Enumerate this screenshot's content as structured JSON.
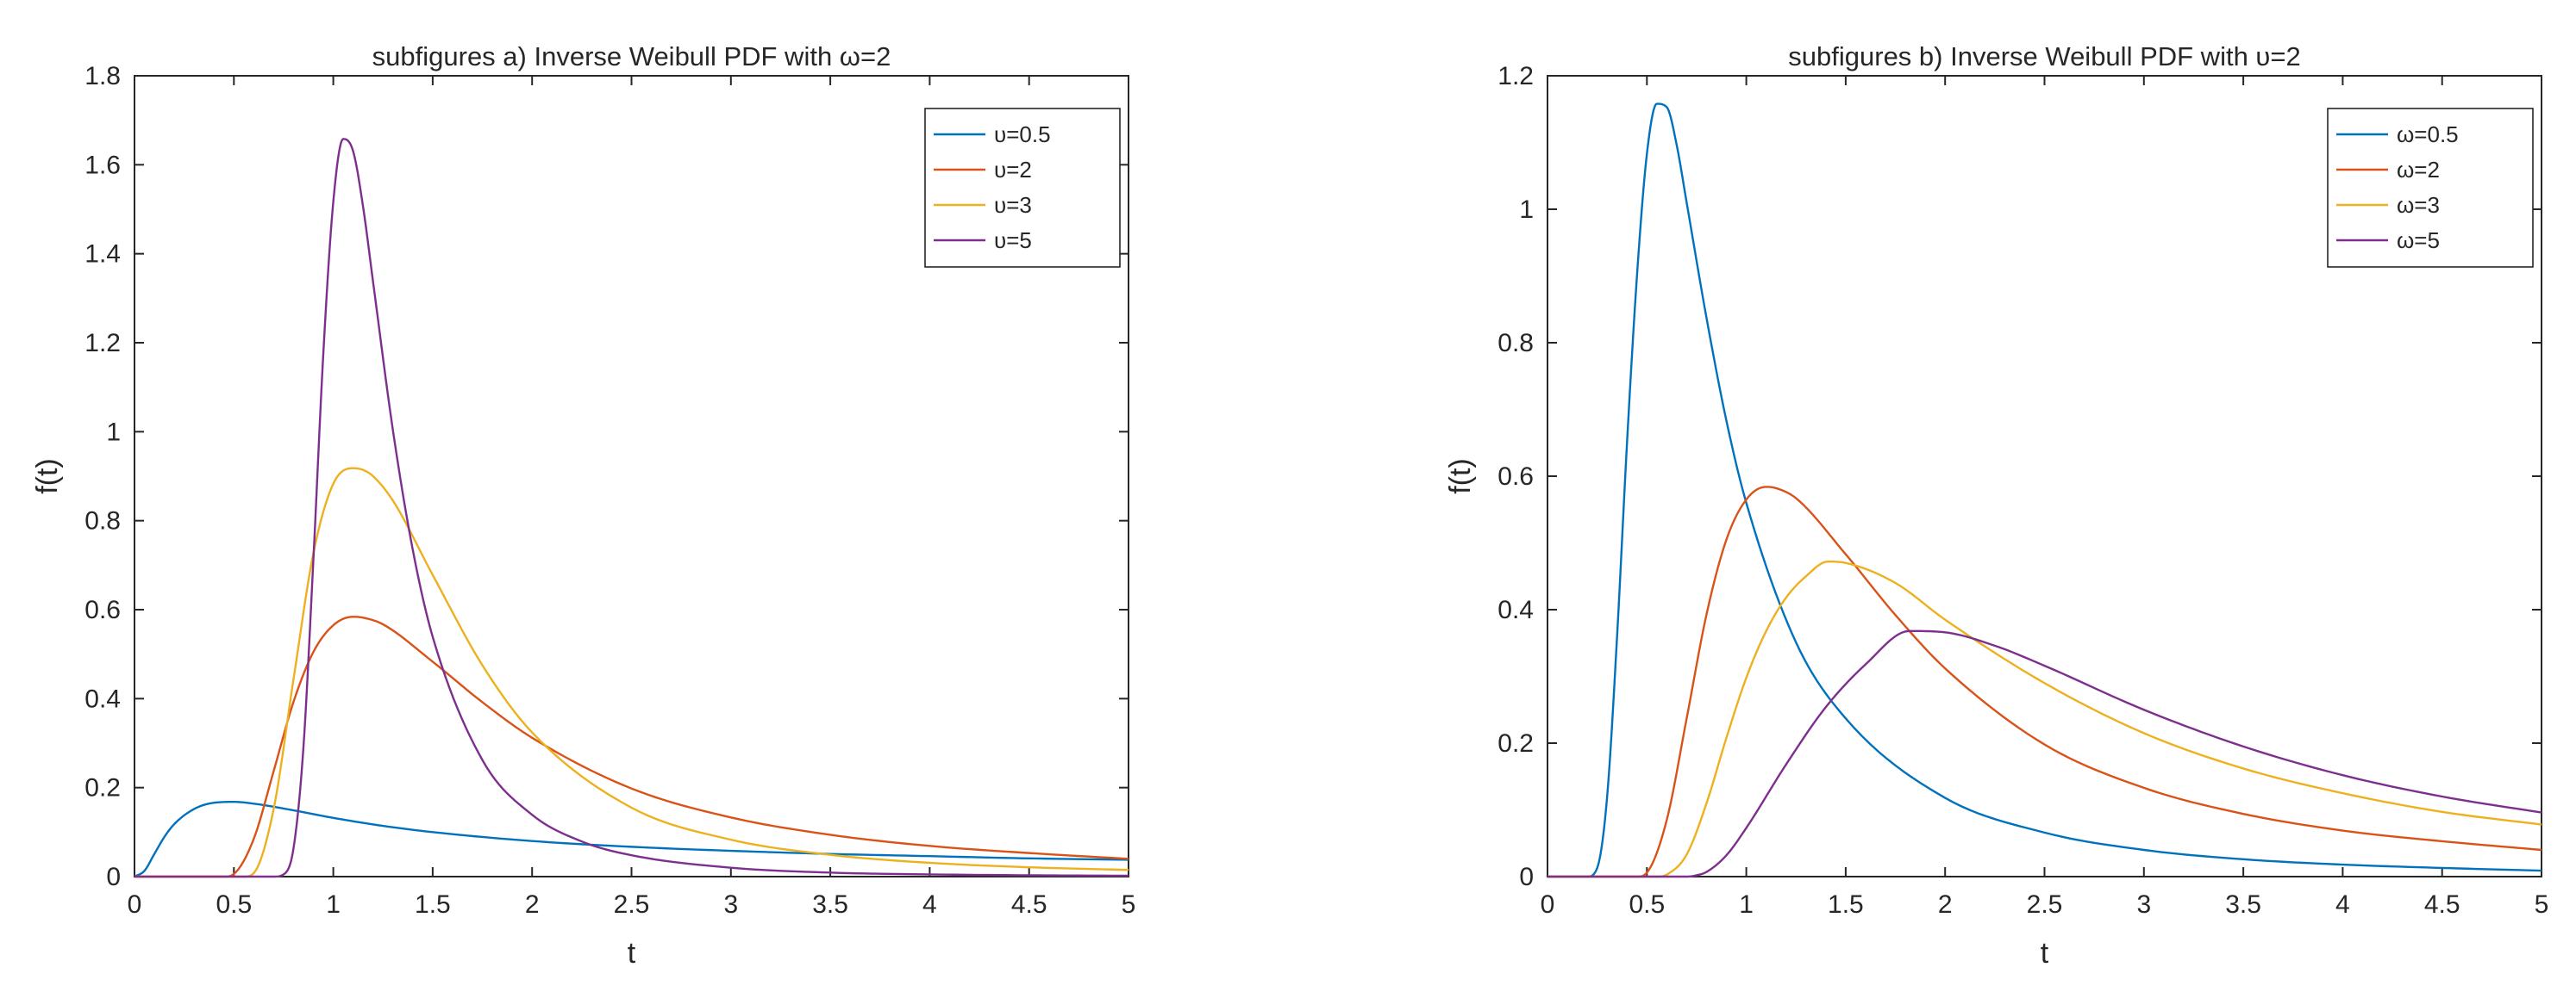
{
  "chart_data": [
    {
      "type": "line",
      "title": "subfigures a)   Inverse Weibull PDF with ω=2",
      "xlabel": "t",
      "ylabel": "f(t)",
      "xlim": [
        0,
        5
      ],
      "ylim": [
        0,
        1.8
      ],
      "xticks": [
        0,
        0.5,
        1,
        1.5,
        2,
        2.5,
        3,
        3.5,
        4,
        4.5,
        5
      ],
      "yticks": [
        0,
        0.2,
        0.4,
        0.6,
        0.8,
        1,
        1.2,
        1.4,
        1.6,
        1.8
      ],
      "xtick_labels": [
        "0",
        "0.5",
        "1",
        "1.5",
        "2",
        "2.5",
        "3",
        "3.5",
        "4",
        "4.5",
        "5"
      ],
      "ytick_labels": [
        "0",
        "0.2",
        "0.4",
        "0.6",
        "0.8",
        "1",
        "1.2",
        "1.4",
        "1.6",
        "1.8"
      ],
      "grid": false,
      "legend_position": "top-right",
      "series": [
        {
          "name": "υ=0.5",
          "color": "#0072BD",
          "x": [
            0,
            0.05,
            0.1,
            0.15,
            0.2,
            0.3,
            0.4,
            0.5,
            0.6,
            0.8,
            1,
            1.25,
            1.5,
            2,
            2.5,
            3,
            3.5,
            4,
            4.5,
            5
          ],
          "y": [
            0,
            0.013,
            0.051,
            0.089,
            0.118,
            0.152,
            0.166,
            0.168,
            0.164,
            0.149,
            0.132,
            0.114,
            0.1,
            0.08,
            0.067,
            0.058,
            0.051,
            0.046,
            0.041,
            0.038
          ]
        },
        {
          "name": "υ=2",
          "color": "#D95319",
          "x": [
            0,
            0.45,
            0.5,
            0.6,
            0.7,
            0.8,
            0.9,
            1,
            1.1,
            1.15,
            1.25,
            1.5,
            1.75,
            2,
            2.5,
            3,
            3.5,
            4,
            4.5,
            5
          ],
          "y": [
            0,
            0,
            0.006,
            0.085,
            0.237,
            0.393,
            0.505,
            0.565,
            0.584,
            0.582,
            0.567,
            0.483,
            0.392,
            0.312,
            0.198,
            0.133,
            0.094,
            0.069,
            0.053,
            0.04
          ]
        },
        {
          "name": "υ=3",
          "color": "#EDB120",
          "x": [
            0,
            0.55,
            0.6,
            0.7,
            0.8,
            0.9,
            1,
            1.1,
            1.15,
            1.2,
            1.3,
            1.5,
            1.75,
            2,
            2.5,
            3,
            3.5,
            4,
            4.5,
            5
          ],
          "y": [
            0,
            0,
            0.008,
            0.152,
            0.444,
            0.727,
            0.883,
            0.918,
            0.914,
            0.9,
            0.845,
            0.678,
            0.475,
            0.324,
            0.155,
            0.083,
            0.049,
            0.031,
            0.021,
            0.015
          ]
        },
        {
          "name": "υ=5",
          "color": "#7E2F8E",
          "x": [
            0,
            0.7,
            0.75,
            0.8,
            0.85,
            0.9,
            0.95,
            1,
            1.05,
            1.1,
            1.15,
            1.2,
            1.3,
            1.4,
            1.5,
            1.75,
            2,
            2.25,
            2.5,
            3,
            3.5,
            4,
            4.5,
            5
          ],
          "y": [
            0,
            0,
            0.005,
            0.064,
            0.292,
            0.714,
            1.177,
            1.517,
            1.658,
            1.63,
            1.505,
            1.337,
            1.003,
            0.734,
            0.539,
            0.262,
            0.139,
            0.079,
            0.048,
            0.02,
            0.009,
            0.005,
            0.003,
            0.002
          ]
        }
      ]
    },
    {
      "type": "line",
      "title": "subfigures b)   Inverse Weibull PDF with υ=2",
      "xlabel": "t",
      "ylabel": "f(t)",
      "xlim": [
        0,
        5
      ],
      "ylim": [
        0,
        1.2
      ],
      "xticks": [
        0,
        0.5,
        1,
        1.5,
        2,
        2.5,
        3,
        3.5,
        4,
        4.5,
        5
      ],
      "yticks": [
        0,
        0.2,
        0.4,
        0.6,
        0.8,
        1,
        1.2
      ],
      "xtick_labels": [
        "0",
        "0.5",
        "1",
        "1.5",
        "2",
        "2.5",
        "3",
        "3.5",
        "4",
        "4.5",
        "5"
      ],
      "ytick_labels": [
        "0",
        "0.2",
        "0.4",
        "0.6",
        "0.8",
        "1",
        "1.2"
      ],
      "grid": false,
      "legend_position": "top-right",
      "series": [
        {
          "name": "ω=0.5",
          "color": "#0072BD",
          "x": [
            0,
            0.2,
            0.25,
            0.3,
            0.35,
            0.4,
            0.45,
            0.5,
            0.55,
            0.6,
            0.65,
            0.7,
            0.8,
            0.9,
            1,
            1.25,
            1.5,
            2,
            2.5,
            3,
            3.5,
            4,
            4.5,
            5
          ],
          "y": [
            0,
            0,
            0.013,
            0.12,
            0.36,
            0.65,
            0.9,
            1.083,
            1.158,
            1.153,
            1.096,
            1.01,
            0.837,
            0.683,
            0.56,
            0.351,
            0.237,
            0.118,
            0.066,
            0.04,
            0.026,
            0.018,
            0.013,
            0.009
          ]
        },
        {
          "name": "ω=2",
          "color": "#D95319",
          "x": [
            0,
            0.45,
            0.5,
            0.6,
            0.7,
            0.8,
            0.9,
            1,
            1.1,
            1.15,
            1.25,
            1.5,
            1.75,
            2,
            2.5,
            3,
            3.5,
            4,
            4.5,
            5
          ],
          "y": [
            0,
            0,
            0.006,
            0.085,
            0.237,
            0.393,
            0.505,
            0.565,
            0.584,
            0.582,
            0.567,
            0.483,
            0.392,
            0.312,
            0.198,
            0.133,
            0.094,
            0.069,
            0.053,
            0.04
          ]
        },
        {
          "name": "ω=3",
          "color": "#EDB120",
          "x": [
            0,
            0.55,
            0.6,
            0.7,
            0.8,
            0.9,
            1,
            1.1,
            1.2,
            1.3,
            1.41,
            1.5,
            1.75,
            2,
            2.5,
            3,
            3.5,
            4,
            4.5,
            5
          ],
          "y": [
            0,
            0,
            0.003,
            0.033,
            0.11,
            0.208,
            0.298,
            0.368,
            0.418,
            0.45,
            0.472,
            0.47,
            0.44,
            0.385,
            0.29,
            0.215,
            0.162,
            0.125,
            0.097,
            0.078
          ]
        },
        {
          "name": "ω=5",
          "color": "#7E2F8E",
          "x": [
            0,
            0.7,
            0.75,
            0.8,
            0.9,
            1,
            1.2,
            1.4,
            1.6,
            1.82,
            2,
            2.25,
            2.5,
            3,
            3.5,
            4,
            4.5,
            5
          ],
          "y": [
            0,
            0,
            0.002,
            0.007,
            0.032,
            0.073,
            0.168,
            0.254,
            0.318,
            0.368,
            0.366,
            0.346,
            0.316,
            0.25,
            0.195,
            0.152,
            0.12,
            0.096
          ]
        }
      ]
    }
  ]
}
